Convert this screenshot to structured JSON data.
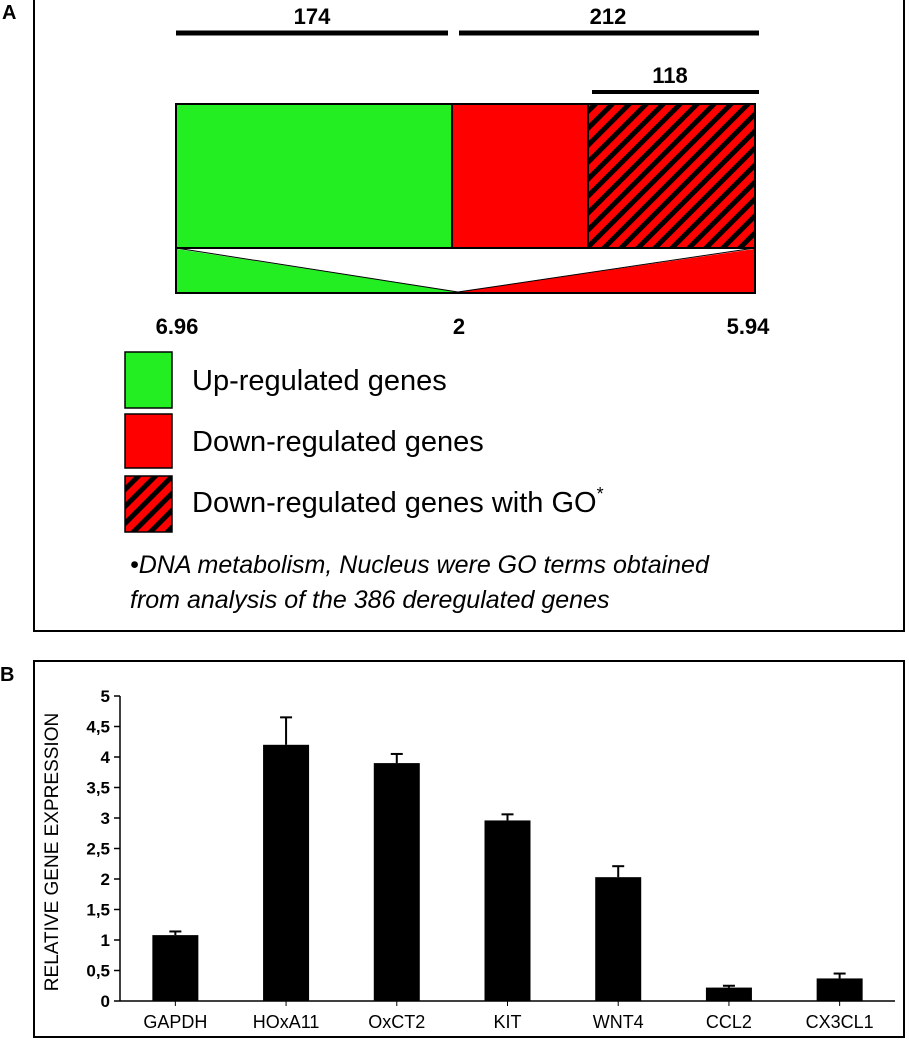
{
  "panel_a": {
    "letter": "A",
    "bracket_labels": [
      "174",
      "212",
      "118"
    ],
    "bottom_values": [
      "6.96",
      "2",
      "5.94"
    ],
    "legend": [
      {
        "label": "Up-regulated genes",
        "color": "#22ee22",
        "pattern": "solid"
      },
      {
        "label": "Down-regulated genes",
        "color": "#ff0000",
        "pattern": "solid"
      },
      {
        "label": "Down-regulated genes with GO",
        "superscript": "*",
        "color": "#ff0000",
        "pattern": "hatched"
      }
    ],
    "footnote_line1": "•DNA metabolism, Nucleus were GO terms obtained",
    "footnote_line2": "from analysis of the 386 deregulated genes",
    "colors": {
      "up": "#22ee22",
      "down": "#ff0000",
      "hatch": "#000000"
    }
  },
  "chart_data": {
    "type": "bar",
    "panel_letter": "B",
    "categories": [
      "GAPDH",
      "HOxA11",
      "OxCT2",
      "KIT",
      "WNT4",
      "CCL2",
      "CX3CL1"
    ],
    "values": [
      1.08,
      4.2,
      3.9,
      2.96,
      2.03,
      0.22,
      0.37
    ],
    "error": [
      0.06,
      0.45,
      0.15,
      0.1,
      0.18,
      0.03,
      0.08
    ],
    "ylabel": "RELATIVE GENE EXPRESSION",
    "ylim": [
      0,
      5
    ],
    "yticks": [
      "0",
      "0,5",
      "1",
      "1,5",
      "2",
      "2,5",
      "3",
      "3,5",
      "4",
      "4,5",
      "5"
    ],
    "bar_color": "#000000",
    "grid": false
  }
}
